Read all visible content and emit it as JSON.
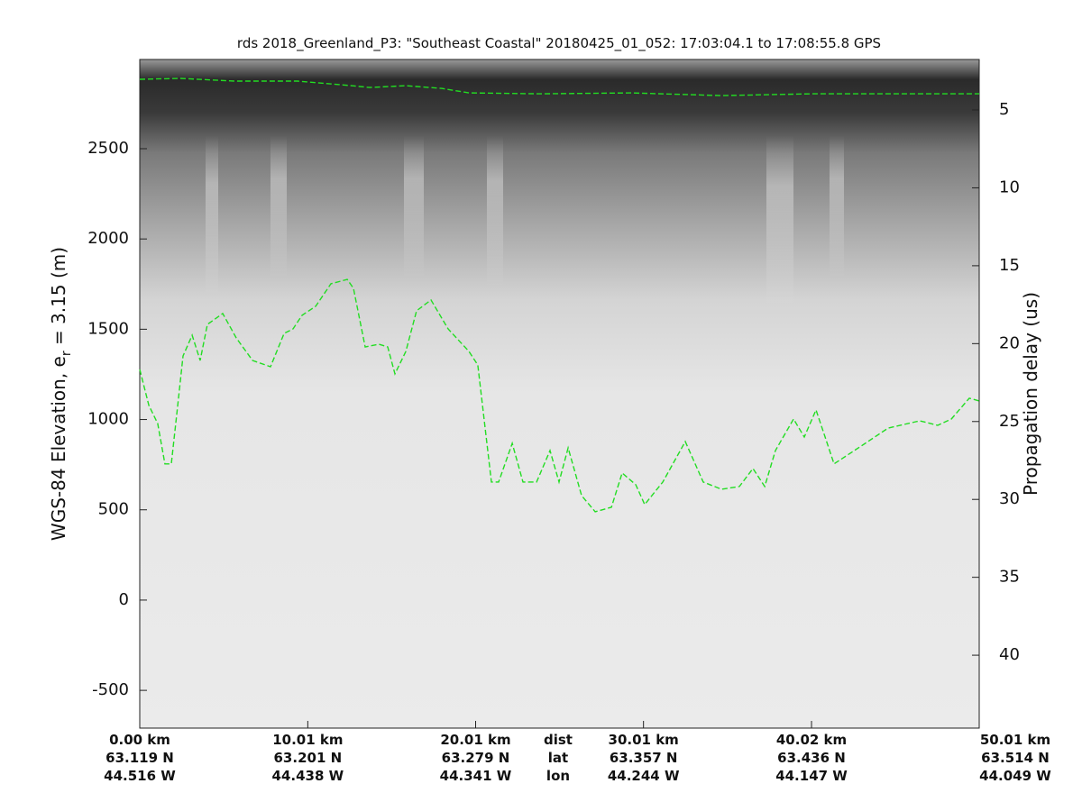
{
  "chart_data": {
    "type": "line",
    "title": "rds 2018_Greenland_P3: \"Southeast Coastal\"  20180425_01_052: 17:03:04.1 to 17:08:55.8 GPS",
    "ylabel": [
      "WGS-84 Elevation, e",
      "r",
      " = 3.15 (m)"
    ],
    "y2label": "Propagation delay (us)",
    "xlim": [
      0,
      50.01
    ],
    "ylim": [
      -709,
      2994
    ],
    "y2lim": [
      44.68,
      1.76
    ],
    "yticks": [
      -500,
      0,
      500,
      1000,
      1500,
      2000,
      2500
    ],
    "y2ticks": [
      5,
      10,
      15,
      20,
      25,
      30,
      35,
      40
    ],
    "xticks": [
      {
        "value": 0,
        "label": "0.00 km"
      },
      {
        "value": 10.01,
        "label": "10.01 km"
      },
      {
        "value": 20.01,
        "label": "20.01 km"
      },
      {
        "value": 30.01,
        "label": "30.01 km"
      },
      {
        "value": 40.02,
        "label": "40.02 km"
      },
      {
        "value": 50.01,
        "label": "50.01 km"
      }
    ],
    "lat_labels": [
      "63.119 N",
      "63.201 N",
      "63.279 N",
      "63.357 N",
      "63.436 N",
      "63.514 N"
    ],
    "lon_labels": [
      "44.516 W",
      "44.438 W",
      "44.341 W",
      "44.244 W",
      "44.147 W",
      "44.049 W"
    ],
    "row_labels": [
      "dist",
      "lat",
      "lon"
    ],
    "series": [
      {
        "color": "#22dd22",
        "x": [
          0,
          2.42,
          5.64,
          9.4,
          12.62,
          13.7,
          15.85,
          17.99,
          19.61,
          23.9,
          29.28,
          34.65,
          40.02,
          45.39,
          50.01
        ],
        "values": [
          2884,
          2889,
          2874,
          2874,
          2849,
          2839,
          2849,
          2834,
          2809,
          2804,
          2809,
          2794,
          2804,
          2804,
          2804
        ]
      },
      {
        "color": "#22dd22",
        "x": [
          0,
          0.54,
          1.07,
          1.5,
          1.88,
          2.26,
          2.58,
          3.12,
          3.6,
          4.03,
          4.94,
          5.75,
          6.72,
          7.79,
          8.6,
          9.13,
          9.67,
          10.48,
          11.39,
          12.36,
          12.73,
          13.43,
          14.24,
          14.77,
          15.2,
          15.85,
          16.49,
          17.35,
          18.37,
          19.61,
          20.14,
          20.95,
          21.38,
          22.19,
          22.83,
          23.64,
          24.44,
          24.98,
          25.52,
          26.32,
          27.13,
          28.1,
          28.74,
          29.55,
          30.08,
          31.16,
          32.5,
          33.57,
          34.65,
          35.72,
          36.53,
          37.23,
          37.87,
          38.95,
          39.59,
          40.29,
          40.83,
          41.36,
          42.98,
          44.59,
          46.47,
          47.54,
          48.35,
          49.42,
          50.01
        ],
        "values": [
          1277,
          1078,
          978,
          754,
          754,
          1078,
          1352,
          1467,
          1327,
          1527,
          1587,
          1452,
          1327,
          1292,
          1477,
          1502,
          1577,
          1627,
          1752,
          1776,
          1727,
          1402,
          1417,
          1402,
          1253,
          1377,
          1602,
          1662,
          1502,
          1377,
          1302,
          654,
          654,
          868,
          654,
          654,
          828,
          654,
          843,
          579,
          489,
          514,
          704,
          639,
          529,
          654,
          878,
          654,
          614,
          629,
          729,
          629,
          828,
          1003,
          903,
          1053,
          903,
          754,
          853,
          953,
          993,
          968,
          1003,
          1118,
          1103
        ]
      }
    ]
  }
}
